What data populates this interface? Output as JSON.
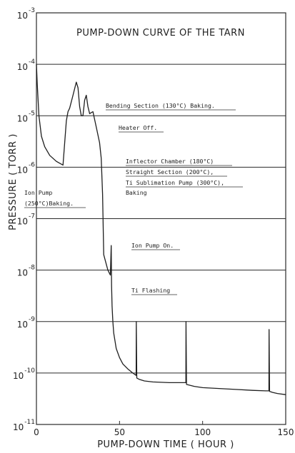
{
  "chart_data": {
    "type": "line",
    "title": "PUMP-DOWN CURVE OF THE TARN",
    "xlabel": "PUMP-DOWN TIME ( HOUR )",
    "ylabel": "PRESSURE ( TORR )",
    "xlim": [
      0,
      150
    ],
    "ylim": [
      1e-11,
      0.001
    ],
    "y_scale": "log",
    "grid": "horizontal",
    "x_ticks": [
      0,
      50,
      100,
      150
    ],
    "x_tick_labels": [
      "0",
      "50",
      "100",
      "150"
    ],
    "y_ticks": [
      {
        "value": 0.001,
        "base": "10",
        "exp": "-3"
      },
      {
        "value": 0.0001,
        "base": "10",
        "exp": "-4"
      },
      {
        "value": 1e-05,
        "base": "10",
        "exp": "-5"
      },
      {
        "value": 1e-06,
        "base": "10",
        "exp": "-6"
      },
      {
        "value": 1e-07,
        "base": "10",
        "exp": "-7"
      },
      {
        "value": 1e-08,
        "base": "10",
        "exp": "-8"
      },
      {
        "value": 1e-09,
        "base": "10",
        "exp": "-9"
      },
      {
        "value": 1e-10,
        "base": "10",
        "exp": "-10"
      },
      {
        "value": 1e-11,
        "base": "10",
        "exp": "-11"
      }
    ],
    "series": [
      {
        "x": [
          0,
          0.5,
          1.5,
          3,
          5,
          8,
          12,
          16,
          18,
          19,
          20,
          22,
          24,
          25,
          26,
          27,
          28,
          29,
          30,
          31,
          32,
          34,
          36,
          38,
          39,
          39.8,
          40.5,
          41.5,
          43,
          44.5,
          45,
          45.2,
          45.5,
          46,
          46.5,
          48,
          50,
          52,
          55,
          58,
          60,
          60.1,
          60.4,
          62,
          65,
          70,
          80,
          89.9,
          90,
          90.3,
          92,
          95,
          100,
          110,
          120,
          130,
          138,
          139.9,
          140,
          140.3,
          142,
          145,
          150
        ],
        "y": [
          0.0001,
          4e-05,
          1e-05,
          4e-06,
          2.5e-06,
          1.7e-06,
          1.3e-06,
          1.1e-06,
          8e-06,
          1.2e-05,
          1.4e-05,
          2.5e-05,
          4.5e-05,
          3.5e-05,
          1.5e-05,
          1e-05,
          1e-05,
          2e-05,
          2.5e-05,
          1.5e-05,
          1.1e-05,
          1.2e-05,
          6e-06,
          3e-06,
          1.5e-06,
          3e-07,
          2e-08,
          1.5e-08,
          1e-08,
          8e-09,
          3e-08,
          5e-09,
          2e-09,
          1e-09,
          6e-10,
          3e-10,
          2e-10,
          1.5e-10,
          1.2e-10,
          1e-10,
          9e-11,
          1e-09,
          8e-11,
          7.5e-11,
          7e-11,
          6.7e-11,
          6.5e-11,
          6.5e-11,
          1e-09,
          6e-11,
          5.8e-11,
          5.5e-11,
          5.2e-11,
          5e-11,
          4.8e-11,
          4.6e-11,
          4.5e-11,
          4.5e-11,
          7e-10,
          4.4e-11,
          4.2e-11,
          4e-11,
          3.8e-11
        ]
      }
    ],
    "annotations": [
      {
        "lines": [
          "Bending Section (130°C) Baking."
        ]
      },
      {
        "lines": [
          "Heater Off."
        ]
      },
      {
        "lines": [
          "Inflector Chamber (180°C)",
          "Straight Section (200°C),",
          "Ti Sublimation Pump (300°C),",
          "Baking"
        ]
      },
      {
        "lines": [
          "Ion Pump",
          "(250°C)Baking."
        ]
      },
      {
        "lines": [
          "Ion Pump On."
        ]
      },
      {
        "lines": [
          "Ti Flashing"
        ]
      }
    ]
  }
}
